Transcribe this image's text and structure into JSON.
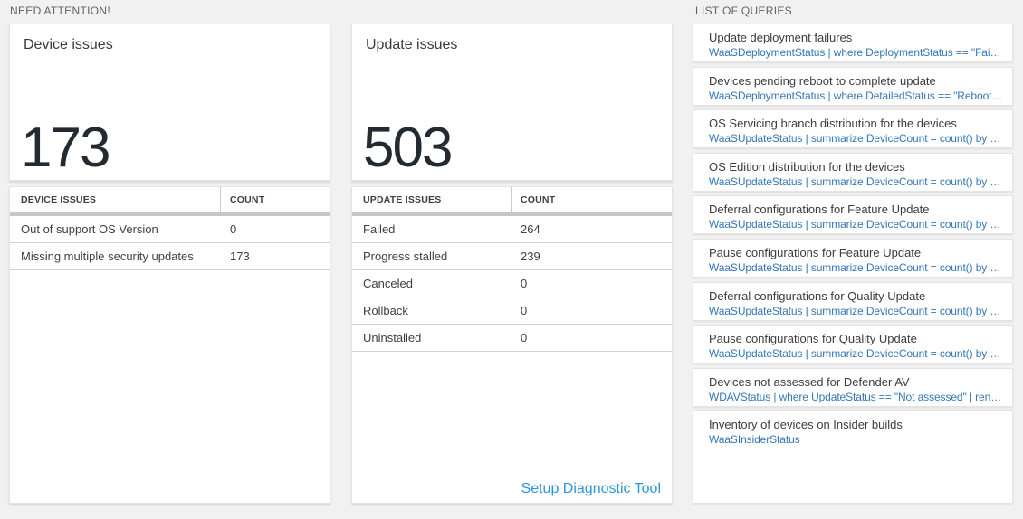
{
  "sections": {
    "need_attention": {
      "label": "NEED ATTENTION!"
    },
    "queries": {
      "label": "LIST OF QUERIES"
    }
  },
  "cards": [
    {
      "title": "Device issues",
      "big_number": "173",
      "table": {
        "headers": [
          "DEVICE ISSUES",
          "COUNT"
        ],
        "rows": [
          [
            "Out of support OS Version",
            "0"
          ],
          [
            "Missing multiple security updates",
            "173"
          ]
        ]
      }
    },
    {
      "title": "Update issues",
      "big_number": "503",
      "table": {
        "headers": [
          "UPDATE ISSUES",
          "COUNT"
        ],
        "rows": [
          [
            "Failed",
            "264"
          ],
          [
            "Progress stalled",
            "239"
          ],
          [
            "Canceled",
            "0"
          ],
          [
            "Rollback",
            "0"
          ],
          [
            "Uninstalled",
            "0"
          ]
        ]
      },
      "link_label": "Setup Diagnostic Tool"
    }
  ],
  "query_list": [
    {
      "title": "Update deployment failures",
      "query": "WaaSDeploymentStatus | where DeploymentStatus == \"Failed\" |..."
    },
    {
      "title": "Devices pending reboot to complete update",
      "query": "WaaSDeploymentStatus | where DetailedStatus == \"Reboot pend..."
    },
    {
      "title": "OS Servicing branch distribution for the devices",
      "query": "WaaSUpdateStatus | summarize DeviceCount = count() by OSSer..."
    },
    {
      "title": "OS Edition distribution for the devices",
      "query": "WaaSUpdateStatus | summarize DeviceCount = count() by OSEdit..."
    },
    {
      "title": "Deferral configurations for Feature Update",
      "query": "WaaSUpdateStatus | summarize DeviceCount = count() by Featur..."
    },
    {
      "title": "Pause configurations for Feature Update",
      "query": "WaaSUpdateStatus | summarize DeviceCount = count() by Featur..."
    },
    {
      "title": "Deferral configurations for Quality Update",
      "query": "WaaSUpdateStatus | summarize DeviceCount = count() by Qualit..."
    },
    {
      "title": "Pause configurations for Quality Update",
      "query": "WaaSUpdateStatus | summarize DeviceCount = count() by Qualit..."
    },
    {
      "title": "Devices not assessed for Defender AV",
      "query": "WDAVStatus | where UpdateStatus == \"Not assessed\" | render ta..."
    },
    {
      "title": "Inventory of devices on Insider builds",
      "query": "WaaSInsiderStatus"
    }
  ],
  "colors": {
    "page_bg": "#f1f1f1",
    "accent_link": "#2d96d8",
    "query_blue": "#3476b5",
    "big_number": "#242a31"
  }
}
